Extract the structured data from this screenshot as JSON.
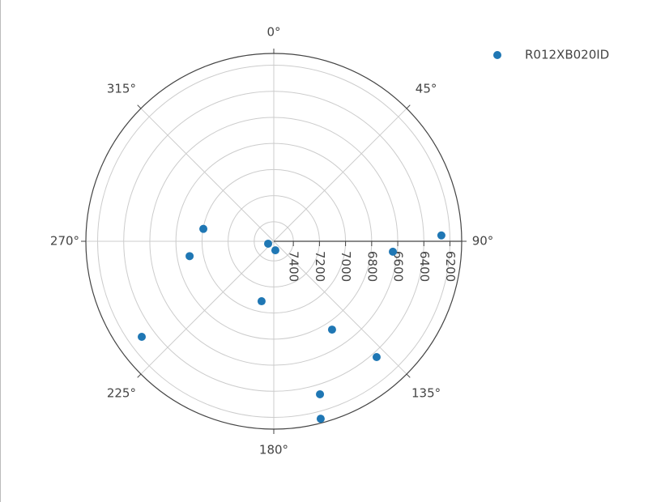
{
  "chart_data": {
    "type": "polar",
    "series": [
      {
        "name": "R012XB020ID",
        "color": "#1f77b4",
        "r": [
          6265,
          6634,
          7503,
          7480,
          7002,
          6895,
          7081,
          6739,
          6363,
          6325,
          6143,
          6301
        ],
        "theta": [
          88,
          95,
          247,
          170,
          280,
          260,
          191.5,
          146.6,
          138.4,
          163.2,
          165.2,
          234.1
        ]
      }
    ],
    "rlim": [
      7550,
      6110
    ],
    "rticks": [
      6200,
      6400,
      6600,
      6800,
      7000,
      7200,
      7400
    ],
    "thetaticks": [
      {
        "value": 0,
        "label": "0°"
      },
      {
        "value": 45,
        "label": "45°"
      },
      {
        "value": 90,
        "label": "90°"
      },
      {
        "value": 135,
        "label": "135°"
      },
      {
        "value": 180,
        "label": "180°"
      },
      {
        "value": 225,
        "label": "225°"
      },
      {
        "value": 270,
        "label": "270°"
      },
      {
        "value": 315,
        "label": "315°"
      }
    ],
    "grid": true,
    "legend": "top-right"
  }
}
